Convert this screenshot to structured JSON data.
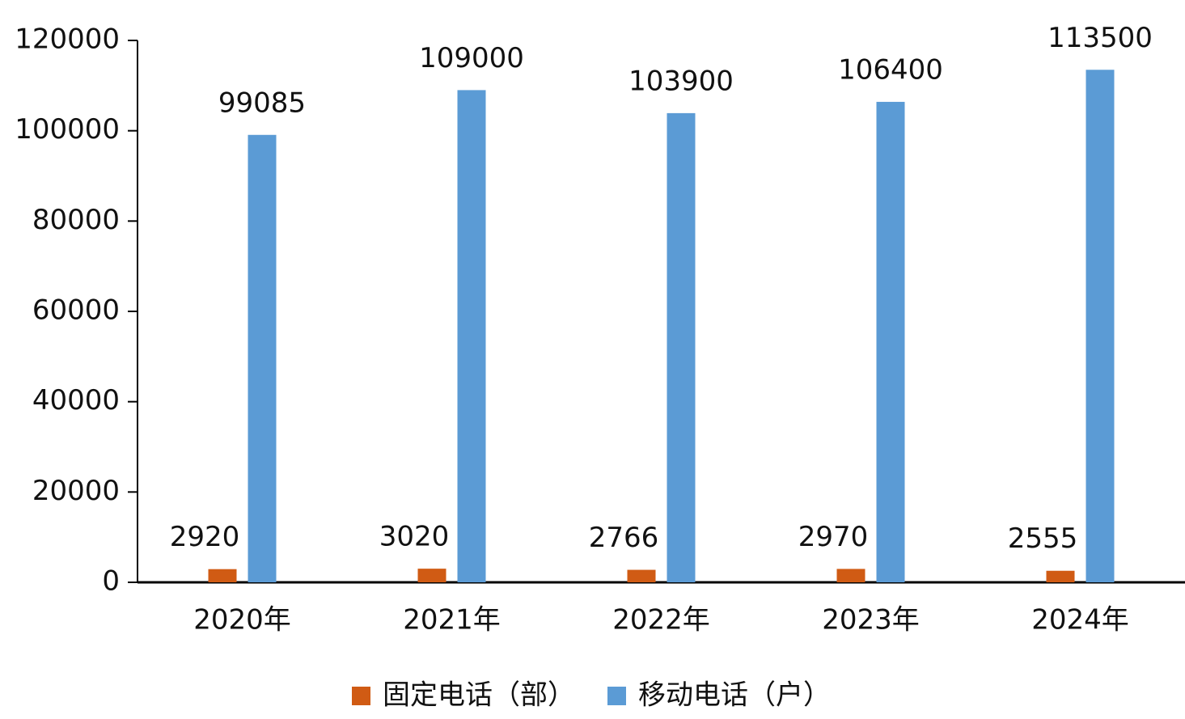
{
  "chart_data": {
    "type": "bar",
    "categories": [
      "2020年",
      "2021年",
      "2022年",
      "2023年",
      "2024年"
    ],
    "series": [
      {
        "name": "固定电话（部）",
        "color": "#d05b14",
        "values": [
          2920,
          3020,
          2766,
          2970,
          2555
        ]
      },
      {
        "name": "移动电话（户）",
        "color": "#5b9bd5",
        "values": [
          99085,
          109000,
          103900,
          106400,
          113500
        ]
      }
    ],
    "ylim": [
      0,
      120000
    ],
    "yticks": [
      0,
      20000,
      40000,
      60000,
      80000,
      100000,
      120000
    ],
    "legend": "bottom"
  }
}
